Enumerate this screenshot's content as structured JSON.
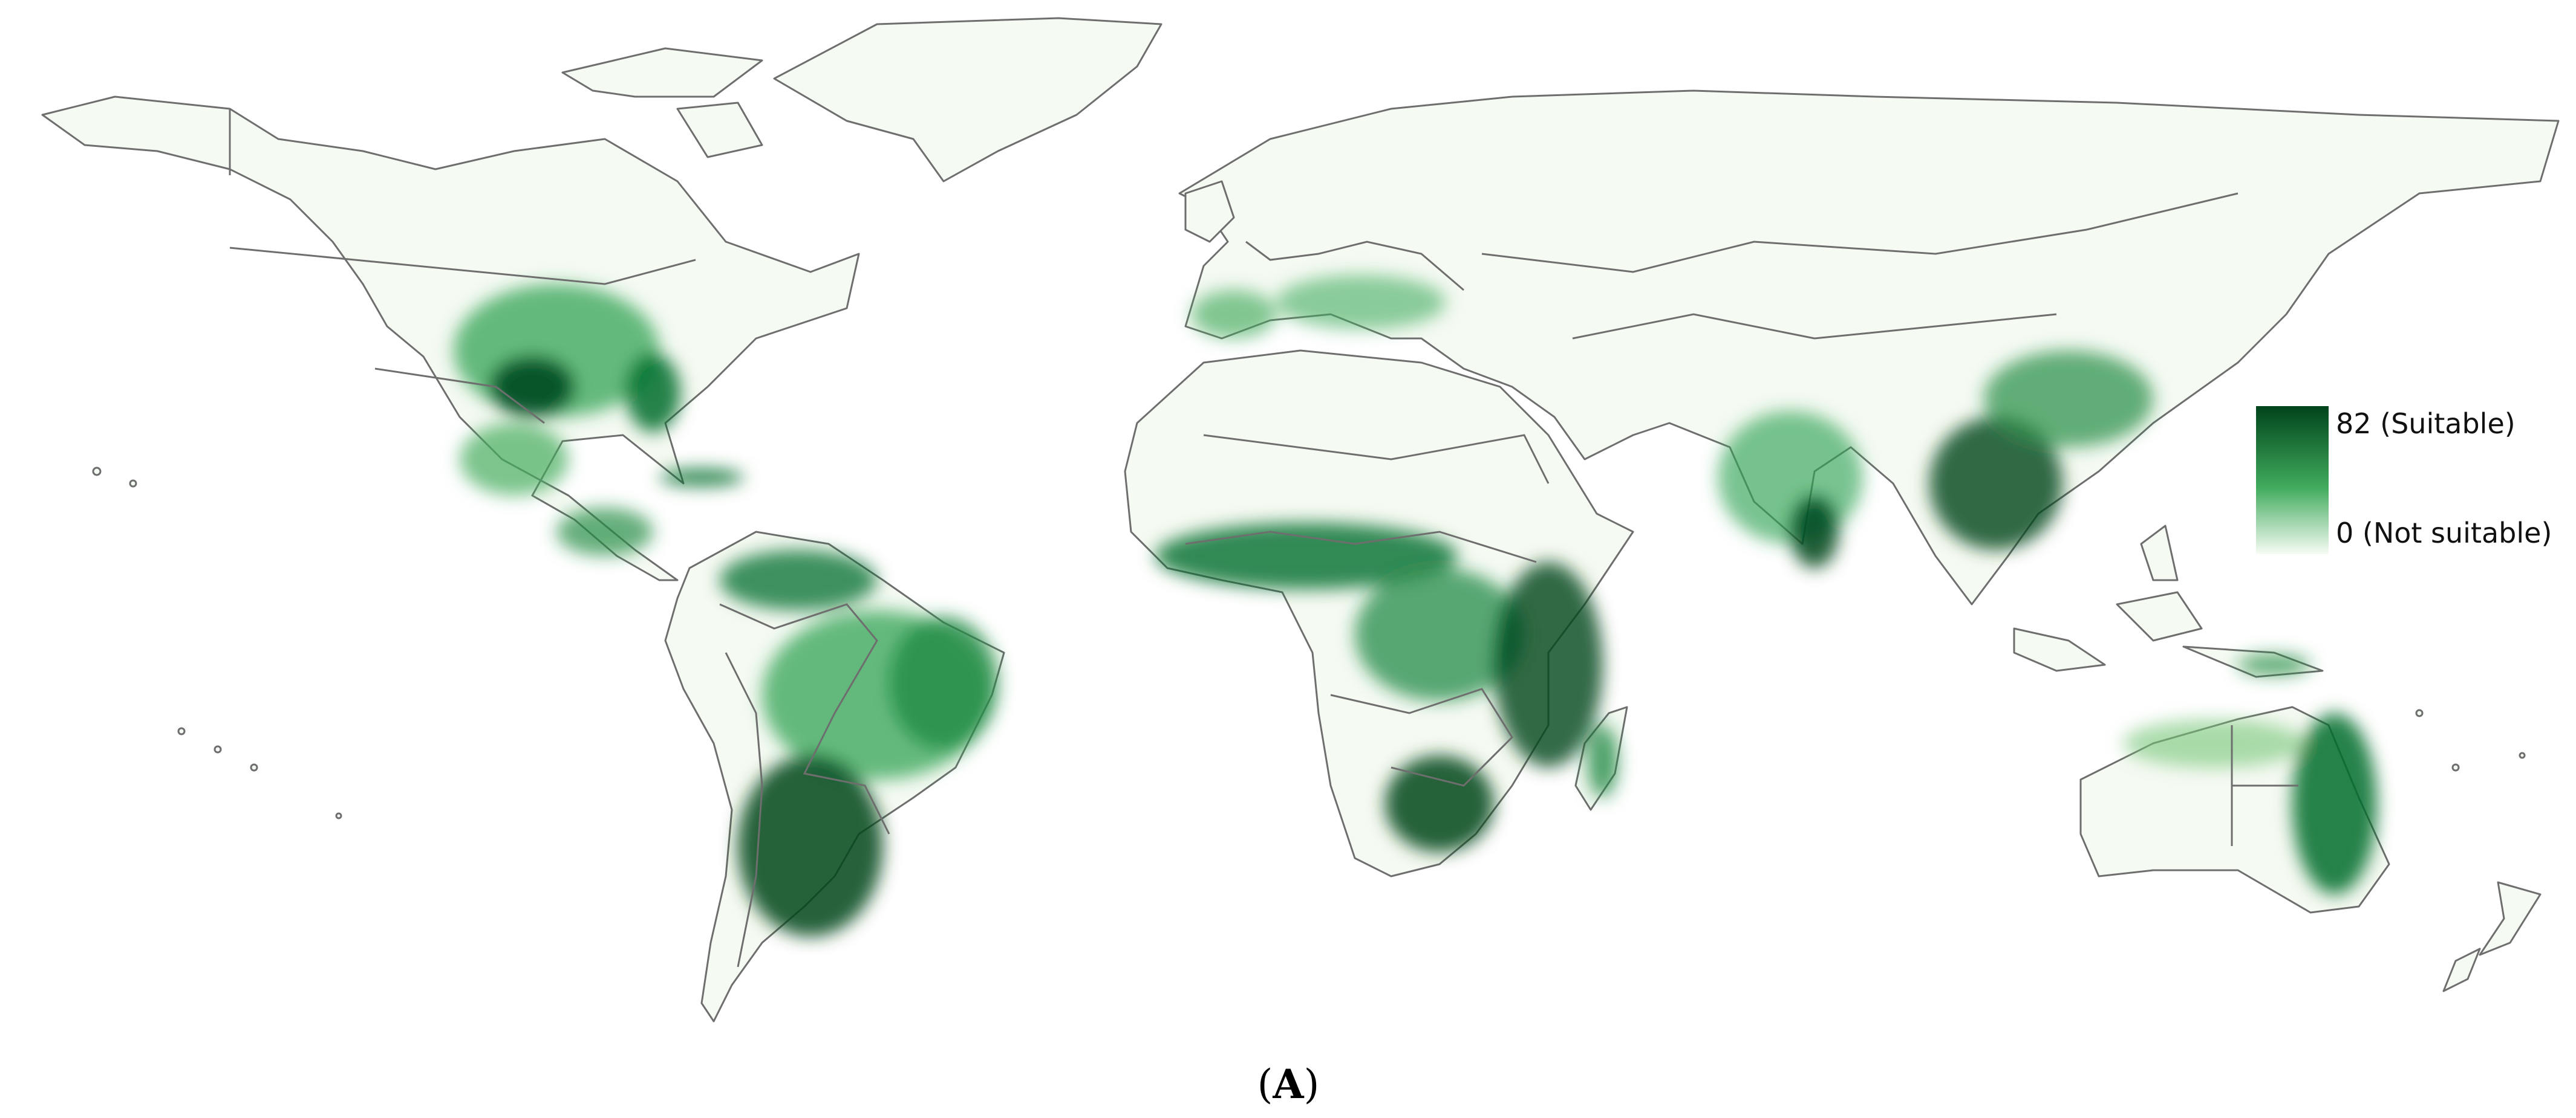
{
  "legend": {
    "max_label": "82 (Suitable)",
    "min_label": "0 (Not suitable)",
    "max_value": 82,
    "min_value": 0,
    "color_high": "#00441b",
    "color_mid": "#41ab5d",
    "color_low": "#f7fcf5"
  },
  "panel": {
    "open": "(",
    "letter": "A",
    "close": ")"
  },
  "map": {
    "projection": "equirectangular world",
    "country_border_color": "#6e6e6e",
    "ocean_color": "#ffffff"
  }
}
